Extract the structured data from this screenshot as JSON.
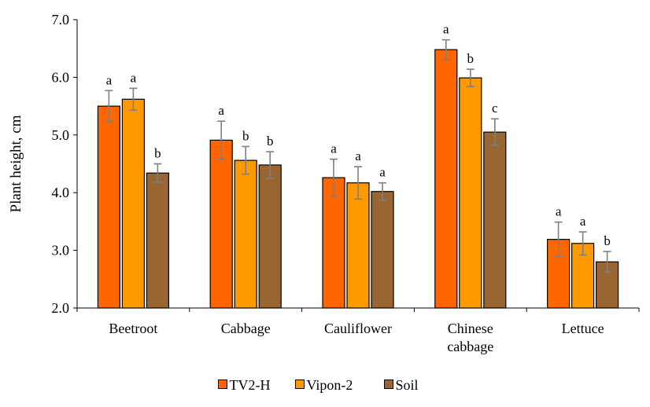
{
  "chart_data": {
    "type": "bar",
    "title": "",
    "xlabel": "",
    "ylabel": "Plant height, cm",
    "ylim": [
      2.0,
      7.0
    ],
    "yticks": [
      "2.0",
      "3.0",
      "4.0",
      "5.0",
      "6.0",
      "7.0"
    ],
    "categories": [
      [
        "Beetroot"
      ],
      [
        "Cabbage"
      ],
      [
        "Cauliflower"
      ],
      [
        "Chinese",
        "cabbage"
      ],
      [
        "Lettuce"
      ]
    ],
    "series": [
      {
        "name": "TV2-H",
        "color": "#FF6600",
        "values": [
          5.5,
          4.91,
          4.26,
          6.48,
          3.19
        ],
        "errors": [
          0.27,
          0.33,
          0.32,
          0.17,
          0.3
        ],
        "letters": [
          "a",
          "a",
          "a",
          "a",
          "a"
        ]
      },
      {
        "name": "Vipon-2",
        "color": "#FF9900",
        "values": [
          5.62,
          4.56,
          4.17,
          5.99,
          3.12
        ],
        "errors": [
          0.19,
          0.24,
          0.28,
          0.15,
          0.2
        ],
        "letters": [
          "a",
          "b",
          "a",
          "b",
          "a"
        ]
      },
      {
        "name": "Soil",
        "color": "#996633",
        "values": [
          4.34,
          4.48,
          4.02,
          5.05,
          2.8
        ],
        "errors": [
          0.16,
          0.23,
          0.15,
          0.23,
          0.18
        ],
        "letters": [
          "b",
          "b",
          "a",
          "c",
          "b"
        ]
      }
    ],
    "grid": false,
    "legend_position": "bottom"
  }
}
